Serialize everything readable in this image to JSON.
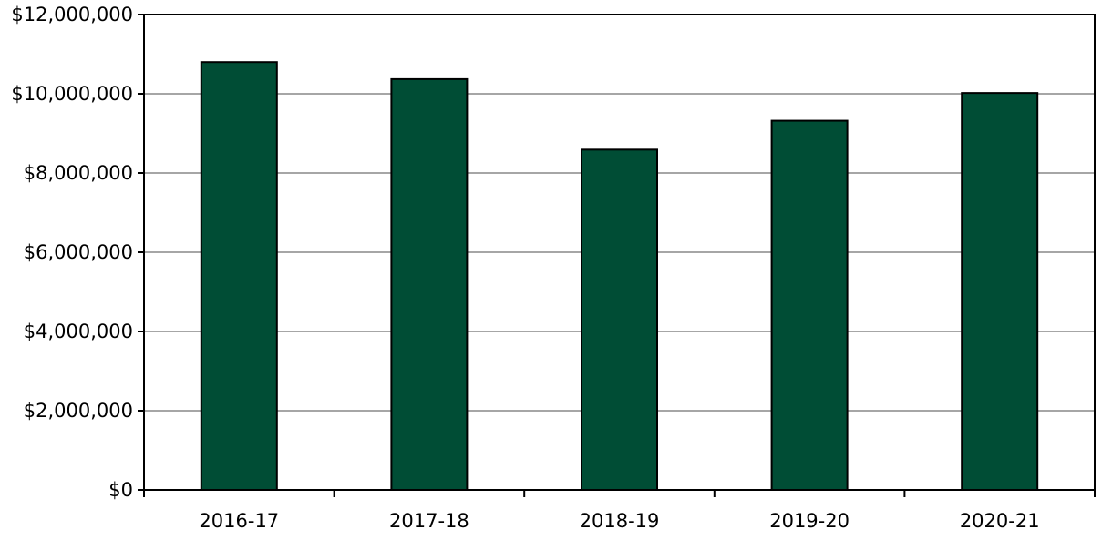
{
  "chart_data": {
    "type": "bar",
    "title": "",
    "xlabel": "",
    "ylabel": "",
    "categories": [
      "2016-17",
      "2017-18",
      "2018-19",
      "2019-20",
      "2020-21"
    ],
    "values": [
      10800000,
      10370000,
      8590000,
      9320000,
      10020000
    ],
    "ylim": [
      0,
      12000000
    ],
    "y_ticks": [
      0,
      2000000,
      4000000,
      6000000,
      8000000,
      10000000,
      12000000
    ],
    "y_tick_labels": [
      "$0",
      "$2,000,000",
      "$4,000,000",
      "$6,000,000",
      "$8,000,000",
      "$10,000,000",
      "$12,000,000"
    ],
    "grid": true,
    "legend": "none",
    "colors": {
      "bar_fill": "#004d35",
      "bar_stroke": "#000000",
      "grid": "#a6a6a6",
      "axis": "#000000"
    }
  }
}
